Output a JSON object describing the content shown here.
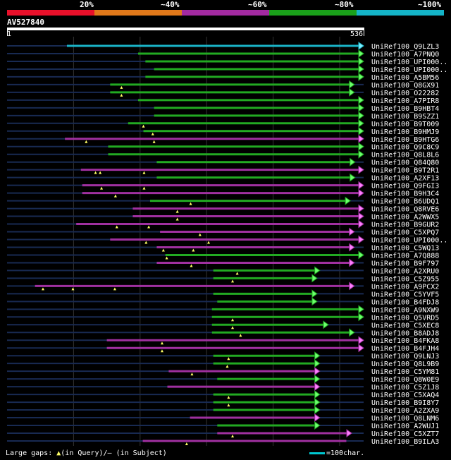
{
  "legend": {
    "labels": [
      "20%",
      "~40%",
      "~60%",
      "~80%",
      "~100%"
    ],
    "colors": [
      "#e8102a",
      "#e0781a",
      "#a22aa0",
      "#1aa01a",
      "#14b4c8"
    ]
  },
  "query": {
    "name": "AV527840",
    "start": "1",
    "end": "536",
    "length": 536
  },
  "footer": {
    "prefix": "Large gaps: ",
    "query_mark": "▲",
    "query_text": "(in Query)/",
    "subject_mark": "–",
    "subject_text": " (in Subject)",
    "scale_text": "=100char."
  },
  "hits": [
    {
      "label": "UniRef100_Q9LZL3",
      "color": "cyan",
      "start": 90,
      "end": 536,
      "tris": [],
      "arrow": true
    },
    {
      "label": "UniRef100_A7PNQ0",
      "color": "green",
      "start": 197,
      "end": 536,
      "tris": [],
      "arrow": true
    },
    {
      "label": "UniRef100_UPI000..",
      "color": "green",
      "start": 208,
      "end": 536,
      "tris": [],
      "arrow": true
    },
    {
      "label": "UniRef100_UPI000..",
      "color": "green",
      "start": 221,
      "end": 536,
      "tris": [],
      "arrow": true
    },
    {
      "label": "UniRef100_A5BM56",
      "color": "green",
      "start": 208,
      "end": 536,
      "tris": [],
      "arrow": true
    },
    {
      "label": "UniRef100_Q8GX91",
      "color": "green",
      "start": 155,
      "end": 522,
      "tris": [
        172
      ],
      "arrow": true
    },
    {
      "label": "UniRef100_O22282",
      "color": "green",
      "start": 155,
      "end": 522,
      "tris": [
        172
      ],
      "arrow": true
    },
    {
      "label": "UniRef100_A7PIR8",
      "color": "green",
      "start": 197,
      "end": 536,
      "tris": [],
      "arrow": true
    },
    {
      "label": "UniRef100_B9HBT4",
      "color": "green",
      "start": 221,
      "end": 536,
      "tris": [],
      "arrow": true
    },
    {
      "label": "UniRef100_B9SZZ1",
      "color": "green",
      "start": 221,
      "end": 536,
      "tris": [],
      "arrow": true
    },
    {
      "label": "UniRef100_B9T009",
      "color": "green",
      "start": 182,
      "end": 536,
      "tris": [
        205
      ],
      "arrow": true
    },
    {
      "label": "UniRef100_B9HMJ9",
      "color": "green",
      "start": 205,
      "end": 536,
      "tris": [
        219
      ],
      "arrow": true
    },
    {
      "label": "UniRef100_B9HTG6",
      "color": "purple",
      "start": 87,
      "end": 536,
      "tris": [
        119,
        221
      ],
      "arrow": true
    },
    {
      "label": "UniRef100_Q9C8C9",
      "color": "green",
      "start": 152,
      "end": 536,
      "tris": [],
      "arrow": true
    },
    {
      "label": "UniRef100_Q8L8L6",
      "color": "green",
      "start": 152,
      "end": 536,
      "tris": [],
      "arrow": true
    },
    {
      "label": "UniRef100_Q84Q80",
      "color": "green",
      "start": 225,
      "end": 523,
      "tris": [],
      "arrow": true
    },
    {
      "label": "UniRef100_B9T2R1",
      "color": "purple",
      "start": 111,
      "end": 536,
      "tris": [
        133,
        140,
        206
      ],
      "arrow": true
    },
    {
      "label": "UniRef100_A2XF13",
      "color": "green",
      "start": 225,
      "end": 523,
      "tris": [],
      "arrow": true
    },
    {
      "label": "UniRef100_Q9FGI3",
      "color": "purple",
      "start": 113,
      "end": 536,
      "tris": [
        142,
        206
      ],
      "arrow": true
    },
    {
      "label": "UniRef100_B9H3C4",
      "color": "purple",
      "start": 113,
      "end": 536,
      "tris": [
        163
      ],
      "arrow": true
    },
    {
      "label": "UniRef100_B6UDQ1",
      "color": "green",
      "start": 215,
      "end": 516,
      "tris": [
        276
      ],
      "arrow": true
    },
    {
      "label": "UniRef100_Q8RVE6",
      "color": "purple",
      "start": 189,
      "end": 536,
      "tris": [
        256
      ],
      "arrow": true
    },
    {
      "label": "UniRef100_A2WWX5",
      "color": "purple",
      "start": 189,
      "end": 536,
      "tris": [
        256
      ],
      "arrow": true
    },
    {
      "label": "UniRef100_B9GUR2",
      "color": "purple",
      "start": 104,
      "end": 536,
      "tris": [
        165,
        213
      ],
      "arrow": true
    },
    {
      "label": "UniRef100_C5XPQ7",
      "color": "purple",
      "start": 230,
      "end": 522,
      "tris": [
        290
      ],
      "arrow": true
    },
    {
      "label": "UniRef100_UPI000..",
      "color": "purple",
      "start": 155,
      "end": 536,
      "tris": [
        209,
        303
      ],
      "arrow": true
    },
    {
      "label": "UniRef100_C5WQ13",
      "color": "purple",
      "start": 225,
      "end": 522,
      "tris": [
        235,
        280
      ],
      "arrow": true
    },
    {
      "label": "UniRef100_A7Q888",
      "color": "green",
      "start": 238,
      "end": 536,
      "tris": [
        240
      ],
      "arrow": true
    },
    {
      "label": "UniRef100_B9F797",
      "color": "purple",
      "start": 225,
      "end": 522,
      "tris": [
        277
      ],
      "arrow": true
    },
    {
      "label": "UniRef100_A2XRU0",
      "color": "green",
      "start": 310,
      "end": 470,
      "tris": [
        346
      ],
      "arrow": true
    },
    {
      "label": "UniRef100_C5Z955",
      "color": "green",
      "start": 310,
      "end": 466,
      "tris": [
        339
      ],
      "arrow": true
    },
    {
      "label": "UniRef100_A9PCX2",
      "color": "purple",
      "start": 42,
      "end": 522,
      "tris": [
        54,
        99,
        162
      ],
      "arrow": true
    },
    {
      "label": "UniRef100_C5YVF5",
      "color": "green",
      "start": 310,
      "end": 466,
      "tris": [],
      "arrow": true
    },
    {
      "label": "UniRef100_B4FDJ8",
      "color": "green",
      "start": 316,
      "end": 466,
      "tris": [],
      "arrow": true
    },
    {
      "label": "UniRef100_A9NXW9",
      "color": "green",
      "start": 308,
      "end": 536,
      "tris": [],
      "arrow": true
    },
    {
      "label": "UniRef100_Q5VRD5",
      "color": "green",
      "start": 308,
      "end": 536,
      "tris": [
        339
      ],
      "arrow": true
    },
    {
      "label": "UniRef100_C5XEC8",
      "color": "green",
      "start": 308,
      "end": 483,
      "tris": [
        339
      ],
      "arrow": true
    },
    {
      "label": "UniRef100_B8ADJ8",
      "color": "green",
      "start": 308,
      "end": 522,
      "tris": [
        351
      ],
      "arrow": true
    },
    {
      "label": "UniRef100_B4FKA8",
      "color": "purple",
      "start": 150,
      "end": 536,
      "tris": [
        233
      ],
      "arrow": true
    },
    {
      "label": "UniRef100_B4FJH4",
      "color": "purple",
      "start": 150,
      "end": 536,
      "tris": [
        233
      ],
      "arrow": true
    },
    {
      "label": "UniRef100_Q9LNJ3",
      "color": "green",
      "start": 310,
      "end": 470,
      "tris": [
        333
      ],
      "arrow": true
    },
    {
      "label": "UniRef100_Q8L9B9",
      "color": "green",
      "start": 310,
      "end": 470,
      "tris": [
        331
      ],
      "arrow": true
    },
    {
      "label": "UniRef100_C5YM81",
      "color": "purple",
      "start": 243,
      "end": 470,
      "tris": [
        278
      ],
      "arrow": true
    },
    {
      "label": "UniRef100_Q8W0E9",
      "color": "green",
      "start": 316,
      "end": 470,
      "tris": [],
      "arrow": true
    },
    {
      "label": "UniRef100_C5Z1J8",
      "color": "purple",
      "start": 241,
      "end": 470,
      "tris": [],
      "arrow": true
    },
    {
      "label": "UniRef100_C5XAQ4",
      "color": "green",
      "start": 310,
      "end": 470,
      "tris": [
        333
      ],
      "arrow": true
    },
    {
      "label": "UniRef100_B9I8Y7",
      "color": "green",
      "start": 310,
      "end": 470,
      "tris": [
        333
      ],
      "arrow": true
    },
    {
      "label": "UniRef100_A2ZXA9",
      "color": "green",
      "start": 310,
      "end": 470,
      "tris": [],
      "arrow": true
    },
    {
      "label": "UniRef100_Q8LNM6",
      "color": "purple",
      "start": 275,
      "end": 470,
      "tris": [],
      "arrow": true
    },
    {
      "label": "UniRef100_A2WUJ1",
      "color": "green",
      "start": 316,
      "end": 470,
      "tris": [],
      "arrow": true
    },
    {
      "label": "UniRef100_C5XZT7",
      "color": "purple",
      "start": 316,
      "end": 518,
      "tris": [
        339
      ],
      "arrow": true
    },
    {
      "label": "UniRef100_B9ILA3",
      "color": "purple",
      "start": 204,
      "end": 510,
      "tris": [
        270
      ],
      "arrow": false
    }
  ]
}
